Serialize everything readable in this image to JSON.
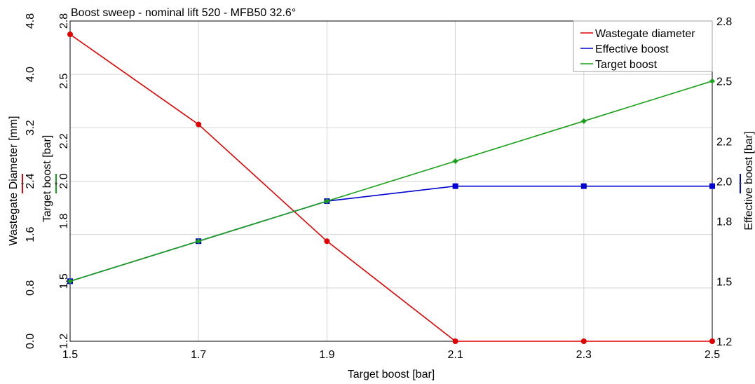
{
  "chart_data": {
    "type": "line",
    "title": "Boost sweep - nominal lift 520 - MFB50 32.6°",
    "xlabel": "Target boost [bar]",
    "x": [
      1.5,
      1.7,
      1.9,
      2.1,
      2.3,
      2.5
    ],
    "x_ticks": [
      "1.5",
      "1.7",
      "1.9",
      "2.1",
      "2.3",
      "2.5"
    ],
    "xlim": [
      1.5,
      2.5
    ],
    "grid": true,
    "legend_position": "top-right",
    "axes": [
      {
        "id": "wastegate",
        "side": "left-outer",
        "label": "Wastegate Diameter [mm]",
        "color": "#e00000",
        "ylim": [
          0.0,
          4.8
        ],
        "ticks": [
          0.0,
          0.8,
          1.6,
          2.4,
          3.2,
          4.0,
          4.8
        ],
        "tick_labels": [
          "0.0",
          "0.8",
          "1.6",
          "2.4",
          "3.2",
          "4.0",
          "4.8"
        ]
      },
      {
        "id": "target",
        "side": "left-inner",
        "label": "Target boost [bar]",
        "color": "#1aa01a",
        "ylim": [
          1.2,
          2.8
        ],
        "ticks": [
          1.2,
          1.5,
          1.8,
          2.0,
          2.2,
          2.5,
          2.8
        ],
        "tick_labels": [
          "1.2",
          "1.5",
          "1.8",
          "2.0",
          "2.2",
          "2.5",
          "2.8"
        ]
      },
      {
        "id": "effective",
        "side": "right",
        "label": "Effective boost [bar]",
        "color": "#0000d0",
        "ylim": [
          1.2,
          2.8
        ],
        "ticks": [
          1.2,
          1.5,
          1.8,
          2.0,
          2.2,
          2.5,
          2.8
        ],
        "tick_labels": [
          "1.2",
          "1.5",
          "1.8",
          "2.0",
          "2.2",
          "2.5",
          "2.8"
        ]
      }
    ],
    "series": [
      {
        "name": "Wastegate diameter",
        "axis": "wastegate",
        "color": "#e00000",
        "marker": "circle",
        "values": [
          4.6,
          3.25,
          1.5,
          0.0,
          0.0,
          0.0
        ]
      },
      {
        "name": "Effective boost",
        "axis": "effective",
        "color": "#0000d0",
        "marker": "square",
        "values": [
          1.5,
          1.7,
          1.9,
          1.975,
          1.975,
          1.975
        ]
      },
      {
        "name": "Target boost",
        "axis": "target",
        "color": "#1aa01a",
        "marker": "diamond",
        "values": [
          1.5,
          1.7,
          1.9,
          2.1,
          2.3,
          2.5
        ]
      }
    ]
  }
}
